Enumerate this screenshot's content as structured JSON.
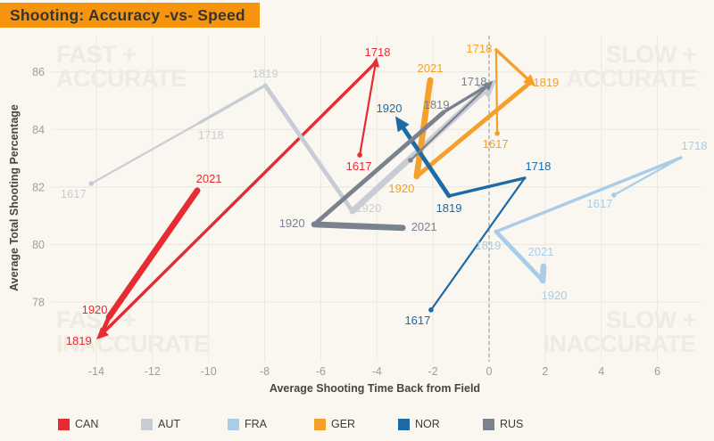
{
  "title": {
    "text": "Shooting: Accuracy -vs- Speed",
    "banner_color": "#f6950d"
  },
  "watermarks": {
    "top_left": [
      "FAST +",
      "ACCURATE"
    ],
    "top_right": [
      "SLOW +",
      "ACCURATE"
    ],
    "bottom_left": [
      "FAST +",
      "INACCURATE"
    ],
    "bottom_right": [
      "SLOW +",
      "INACCURATE"
    ]
  },
  "chart_data": {
    "type": "line",
    "subtype": "connected-scatter, line thickens from 1617 to 2021",
    "xlabel": "Average Shooting Time Back from Field",
    "ylabel": "Average Total Shooting Percentage",
    "x_ticks": [
      -14,
      -12,
      -10,
      -8,
      -6,
      -4,
      -2,
      0,
      2,
      4,
      6
    ],
    "y_ticks": [
      78,
      80,
      82,
      84,
      86
    ],
    "xlim": [
      -15.62,
      7.54
    ],
    "ylim": [
      75.93,
      87.26
    ],
    "zero_reference_line_x": 0,
    "grid": true,
    "series": [
      {
        "name": "CAN",
        "color": "#e62b33",
        "spikes": [
          "1718",
          "1819"
        ],
        "points": [
          {
            "season": "1617",
            "x": -4.61,
            "y": 83.11,
            "dx": -1,
            "dy": 17
          },
          {
            "season": "1718",
            "x": -4.04,
            "y": 86.33,
            "dx": 2,
            "dy": -7
          },
          {
            "season": "1819",
            "x": -13.83,
            "y": 76.86,
            "dx": -25,
            "dy": 11
          },
          {
            "season": "1920",
            "x": -13.55,
            "y": 77.48,
            "dx": -16,
            "dy": -4
          },
          {
            "season": "2021",
            "x": -10.4,
            "y": 81.88,
            "dx": 13,
            "dy": -9
          }
        ]
      },
      {
        "name": "AUT",
        "color": "#c8cdd5",
        "spikes": [
          "2021"
        ],
        "points": [
          {
            "season": "1617",
            "x": -14.18,
            "y": 82.12,
            "dx": -20,
            "dy": 16
          },
          {
            "season": "1718",
            "x": -10.33,
            "y": 84.23,
            "dx": 13,
            "dy": 18
          },
          {
            "season": "1819",
            "x": -7.98,
            "y": 85.53,
            "dx": 0,
            "dy": -9
          },
          {
            "season": "1920",
            "x": -4.87,
            "y": 81.16,
            "dx": 18,
            "dy": 1
          },
          {
            "season": "2021",
            "x": 0.0,
            "y": 85.5,
            "label": ""
          }
        ]
      },
      {
        "name": "FRA",
        "color": "#a9cde9",
        "spikes": [],
        "points": [
          {
            "season": "1617",
            "x": 4.45,
            "y": 81.72,
            "dx": -16,
            "dy": 14
          },
          {
            "season": "1718",
            "x": 6.84,
            "y": 83.02,
            "dx": 15,
            "dy": -9
          },
          {
            "season": "1819",
            "x": 0.25,
            "y": 80.45,
            "dx": -9,
            "dy": 20
          },
          {
            "season": "1920",
            "x": 1.91,
            "y": 78.75,
            "dx": 13,
            "dy": 21
          },
          {
            "season": "2021",
            "x": 1.94,
            "y": 79.24,
            "dx": -3,
            "dy": -12
          }
        ]
      },
      {
        "name": "GER",
        "color": "#f5a02a",
        "spikes": [
          "1819"
        ],
        "points": [
          {
            "season": "1617",
            "x": 0.29,
            "y": 83.86,
            "dx": -2,
            "dy": 16
          },
          {
            "season": "1718",
            "x": 0.25,
            "y": 86.77,
            "dx": -19,
            "dy": 3
          },
          {
            "season": "1819",
            "x": 1.49,
            "y": 85.65,
            "dx": 17,
            "dy": 5
          },
          {
            "season": "1920",
            "x": -2.58,
            "y": 82.37,
            "dx": -17,
            "dy": 18
          },
          {
            "season": "2021",
            "x": -2.1,
            "y": 85.71,
            "dx": 0,
            "dy": -9
          }
        ]
      },
      {
        "name": "NOR",
        "color": "#1c6aa6",
        "spikes": [
          "1920"
        ],
        "points": [
          {
            "season": "1617",
            "x": -2.07,
            "y": 77.73,
            "dx": -15,
            "dy": 16
          },
          {
            "season": "1718",
            "x": 1.27,
            "y": 82.31,
            "dx": 15,
            "dy": -9
          },
          {
            "season": "1819",
            "x": -1.43,
            "y": 81.69,
            "dx": 0,
            "dy": 18
          },
          {
            "season": "1920",
            "x": -3.18,
            "y": 84.23,
            "dx": -12,
            "dy": -12
          }
        ]
      },
      {
        "name": "RUS",
        "color": "#79828e",
        "spikes": [
          "1718"
        ],
        "points": [
          {
            "season": "1617",
            "x": -2.8,
            "y": 82.93,
            "label": ""
          },
          {
            "season": "1718",
            "x": 0.0,
            "y": 85.56,
            "dx": -17,
            "dy": 1
          },
          {
            "season": "1819",
            "x": -1.62,
            "y": 84.6,
            "dx": -8,
            "dy": -4
          },
          {
            "season": "1920",
            "x": -6.23,
            "y": 80.7,
            "dx": -25,
            "dy": 3
          },
          {
            "season": "2021",
            "x": -3.08,
            "y": 80.58,
            "dx": 24,
            "dy": 3
          }
        ]
      }
    ]
  },
  "legend": [
    {
      "label": "CAN",
      "color": "#e62b33"
    },
    {
      "label": "AUT",
      "color": "#c8cdd5"
    },
    {
      "label": "FRA",
      "color": "#a9cde9"
    },
    {
      "label": "GER",
      "color": "#f5a02a"
    },
    {
      "label": "NOR",
      "color": "#1c6aa6"
    },
    {
      "label": "RUS",
      "color": "#79828e"
    }
  ],
  "colors": {
    "background": "#f9f7f0",
    "gridline": "#ebe8dd",
    "watermark": "#eeebe1",
    "tick_text": "#a39d91",
    "axis_title": "#4a453c",
    "zero_line": "#8f8f8f"
  }
}
